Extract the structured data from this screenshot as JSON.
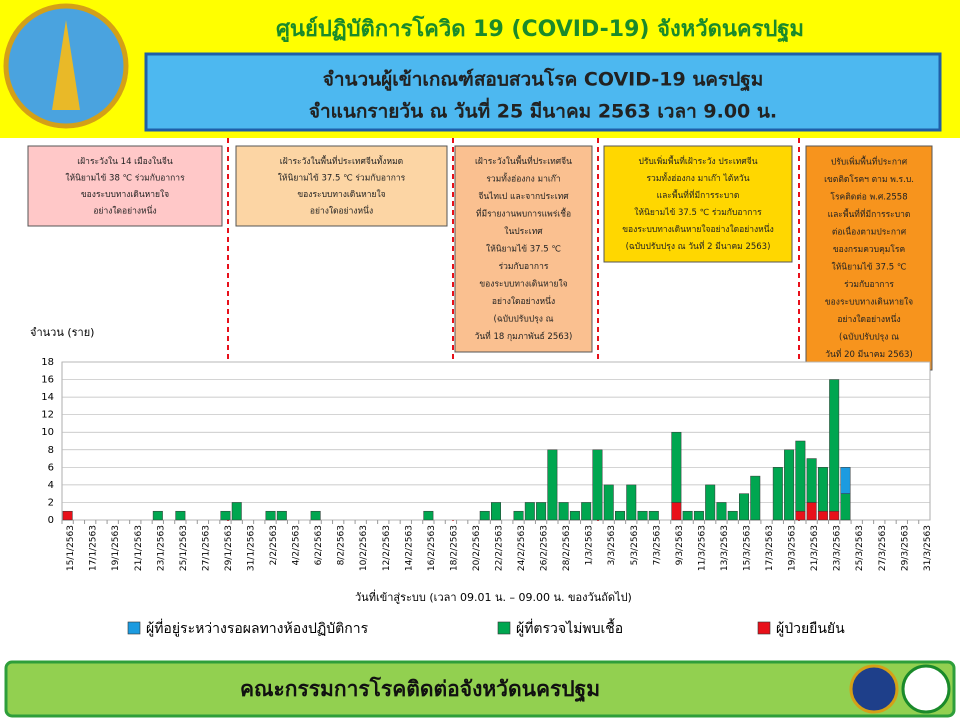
{
  "header": {
    "title": "ศูนย์ปฏิบัติการโควิด 19 (COVID-19) จังหวัดนครปฐม",
    "subtitle_line1": "จำนวนผู้เข้าเกณฑ์สอบสวนโรค COVID-19 นครปฐม",
    "subtitle_line2": "จำแนกรายวัน ณ วันที่ 25 มีนาคม 2563 เวลา 9.00 น."
  },
  "annotations": [
    [
      "เฝ้าระวังใน 14 เมืองในจีน",
      "ให้นิยามไข้ 38 ℃ ร่วมกับอาการ",
      "ของระบบทางเดินหายใจ",
      "อย่างใดอย่างหนึ่ง"
    ],
    [
      "เฝ้าระวังในพื้นที่ประเทศจีนทั้งหมด",
      "ให้นิยามไข้ 37.5 ℃ ร่วมกับอาการ",
      "ของระบบทางเดินหายใจ",
      "อย่างใดอย่างหนึ่ง"
    ],
    [
      "เฝ้าระวังในพื้นที่ประเทศจีน",
      "รวมทั้งฮ่องกง มาเก๊า",
      "จีนไทเป และจากประเทศ",
      "ที่มีรายงานพบการแพร่เชื้อ",
      "ในประเทศ",
      "ให้นิยามไข้ 37.5 ℃",
      "ร่วมกับอาการ",
      "ของระบบทางเดินหายใจ",
      "อย่างใดอย่างหนึ่ง",
      "(ฉบับปรับปรุง ณ",
      "วันที่ 18 กุมภาพันธ์ 2563)"
    ],
    [
      "ปรับเพิ่มพื้นที่เฝ้าระวัง ประเทศจีน",
      "รวมทั้งฮ่องกง มาเก๊า ไต้หวัน",
      "และพื้นที่ที่มีการระบาด",
      "ให้นิยามไข้ 37.5 ℃ ร่วมกับอาการ",
      "ของระบบทางเดินหายใจอย่างใดอย่างหนึ่ง",
      "(ฉบับปรับปรุง ณ วันที่ 2 มีนาคม 2563)"
    ],
    [
      "ปรับเพิ่มพื้นที่ประกาศ",
      "เขตติดโรคฯ ตาม พ.ร.บ.",
      "โรคติดต่อ พ.ศ.2558",
      "และพื้นที่ที่มีการระบาด",
      "ต่อเนื่องตามประกาศ",
      "ของกรมควบคุมโรค",
      "ให้นิยามไข้ 37.5 ℃",
      "ร่วมกับอาการ",
      "ของระบบทางเดินหายใจ",
      "อย่างใดอย่างหนึ่ง",
      "(ฉบับปรับปรุง ณ",
      "วันที่ 20 มีนาคม 2563)"
    ]
  ],
  "chart_data": {
    "type": "stacked_bar",
    "y_label": "จำนวน (ราย)",
    "x_label": "วันที่เข้าสู่ระบบ (เวลา 09.01 น. – 09.00 น. ของวันถัดไป)",
    "categories": [
      "15/1/2563",
      null,
      "17/1/2563",
      null,
      "19/1/2563",
      null,
      "21/1/2563",
      null,
      "23/1/2563",
      null,
      "25/1/2563",
      null,
      "27/1/2563",
      null,
      "29/1/2563",
      null,
      "31/1/2563",
      null,
      "2/2/2563",
      null,
      "4/2/2563",
      null,
      "6/2/2563",
      null,
      "8/2/2563",
      null,
      "10/2/2563",
      null,
      "12/2/2563",
      null,
      "14/2/2563",
      null,
      "16/2/2563",
      null,
      "18/2/2563",
      null,
      "20/2/2563",
      null,
      "22/2/2563",
      null,
      "24/2/2563",
      null,
      "26/2/2563",
      null,
      "28/2/2563",
      null,
      "1/3/2563",
      null,
      "3/3/2563",
      null,
      "5/3/2563",
      null,
      "7/3/2563",
      null,
      "9/3/2563",
      null,
      "11/3/2563",
      null,
      "13/3/2563",
      null,
      "15/3/2563",
      null,
      "17/3/2563",
      null,
      "19/3/2563",
      null,
      "21/3/2563",
      null,
      "23/3/2563",
      null,
      "25/3/2563",
      null,
      "27/3/2563",
      null,
      "29/3/2563",
      null,
      "31/3/2563"
    ],
    "series": [
      {
        "name": "ผู้ที่อยู่ระหว่างรอผลทางห้องปฏิบัติการ",
        "color": "#1c9be0",
        "values": [
          0,
          0,
          0,
          0,
          0,
          0,
          0,
          0,
          0,
          0,
          0,
          0,
          0,
          0,
          0,
          0,
          0,
          0,
          0,
          0,
          0,
          0,
          0,
          0,
          0,
          0,
          0,
          0,
          0,
          0,
          0,
          0,
          0,
          0,
          0,
          0,
          0,
          0,
          0,
          0,
          0,
          0,
          0,
          0,
          0,
          0,
          0,
          0,
          0,
          0,
          0,
          0,
          0,
          0,
          0,
          0,
          0,
          0,
          0,
          0,
          0,
          0,
          0,
          0,
          0,
          0,
          0,
          0,
          0,
          3,
          0,
          0,
          0,
          0,
          0,
          0,
          0
        ]
      },
      {
        "name": "ผู้ที่ตรวจไม่พบเชื้อ",
        "color": "#00a650",
        "values": [
          0,
          0,
          0,
          0,
          0,
          0,
          0,
          0,
          1,
          0,
          1,
          0,
          0,
          0,
          1,
          2,
          0,
          0,
          1,
          1,
          0,
          0,
          1,
          0,
          0,
          0,
          0,
          0,
          0,
          0,
          0,
          0,
          1,
          0,
          0,
          0,
          0,
          1,
          2,
          0,
          1,
          2,
          2,
          8,
          2,
          1,
          2,
          8,
          4,
          1,
          4,
          1,
          1,
          0,
          8,
          1,
          1,
          4,
          2,
          1,
          3,
          5,
          0,
          6,
          8,
          8,
          5,
          5,
          15,
          3,
          0,
          0,
          0,
          0,
          0,
          0,
          0
        ]
      },
      {
        "name": "ผู้ป่วยยืนยัน",
        "color": "#e8101a",
        "values": [
          1,
          0,
          0,
          0,
          0,
          0,
          0,
          0,
          0,
          0,
          0,
          0,
          0,
          0,
          0,
          0,
          0,
          0,
          0,
          0,
          0,
          0,
          0,
          0,
          0,
          0,
          0,
          0,
          0,
          0,
          0,
          0,
          0,
          0,
          0,
          0,
          0,
          0,
          0,
          0,
          0,
          0,
          0,
          0,
          0,
          0,
          0,
          0,
          0,
          0,
          0,
          0,
          0,
          0,
          2,
          0,
          0,
          0,
          0,
          0,
          0,
          0,
          0,
          0,
          0,
          1,
          2,
          1,
          1,
          0,
          0,
          0,
          0,
          0,
          0,
          0,
          0
        ]
      }
    ],
    "ylim": [
      0,
      18
    ],
    "yticks": [
      0,
      2,
      4,
      6,
      8,
      10,
      12,
      14,
      16,
      18
    ],
    "grid": true
  },
  "footer": {
    "text": "คณะกรรมการโรคติดต่อจังหวัดนครปฐม"
  }
}
